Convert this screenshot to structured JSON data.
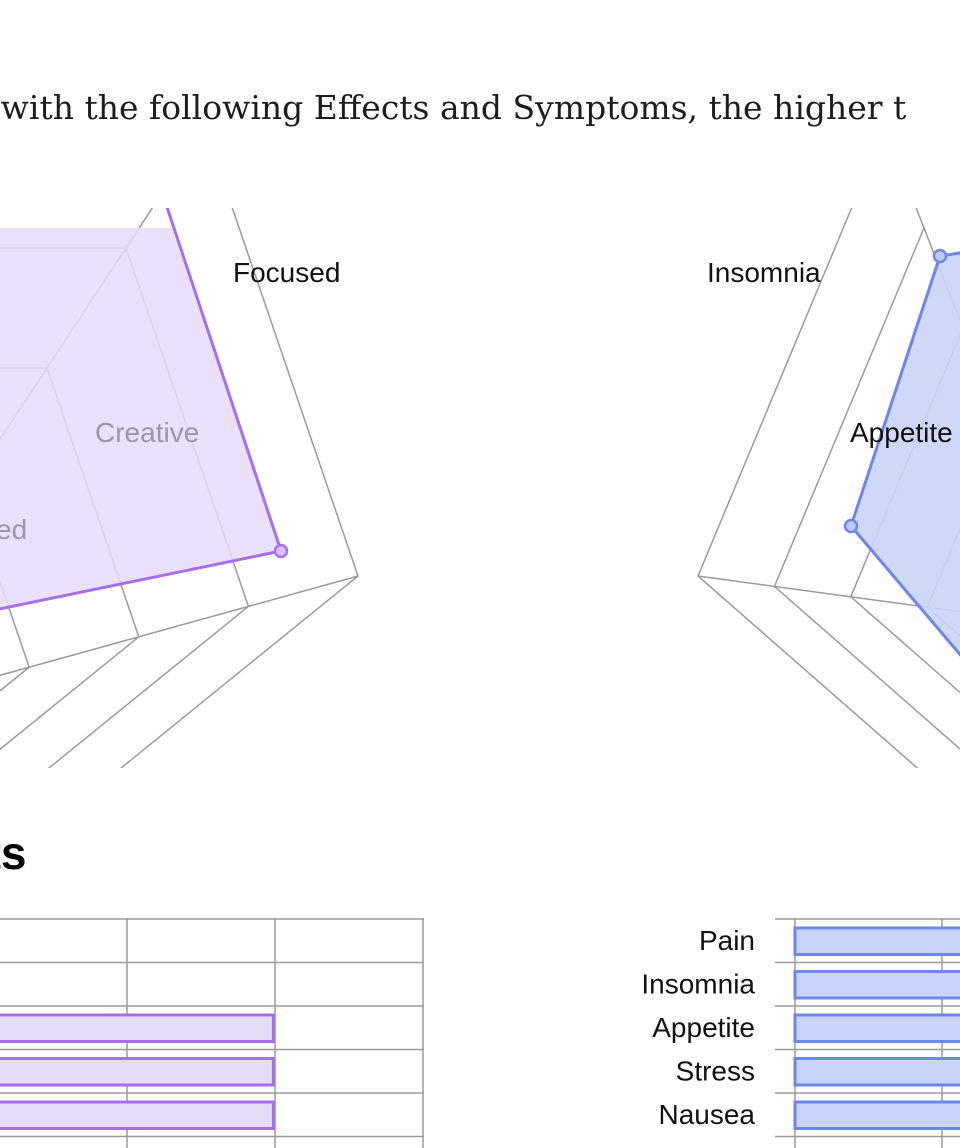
{
  "intro_text": "ts with the following Effects and Symptoms, the higher t",
  "section_heading": "cts",
  "colors": {
    "effects_stroke": "#a66ee8",
    "effects_fill": "#e8dcfb",
    "symptoms_stroke": "#6b87ea",
    "symptoms_fill": "#cad4f8",
    "grid": "#9a9a9a"
  },
  "chart_data": [
    {
      "type": "radar",
      "name": "effects-radar",
      "axes": [
        "Focused",
        "Creative",
        "ed"
      ],
      "visible_axis_label": "Focused",
      "faded_labels": [
        "Creative",
        "ed"
      ],
      "series": [
        {
          "values": [
            4,
            5,
            4
          ]
        }
      ]
    },
    {
      "type": "radar",
      "name": "symptoms-radar",
      "axes": [
        "Insomnia",
        "Appetite"
      ],
      "visible_axis_label": "Insomnia",
      "faded_labels": [
        "Appetite"
      ],
      "series": [
        {
          "values": [
            4,
            3
          ]
        }
      ]
    },
    {
      "type": "bar",
      "orientation": "horizontal",
      "name": "effects-bars",
      "categories": [
        "",
        "",
        "",
        "",
        ""
      ],
      "values": [
        0,
        0,
        4,
        4,
        4
      ],
      "xlim": [
        0,
        5
      ]
    },
    {
      "type": "bar",
      "orientation": "horizontal",
      "name": "symptoms-bars",
      "categories": [
        "Pain",
        "Insomnia",
        "Appetite",
        "Stress",
        "Nausea"
      ],
      "values": [
        4,
        4,
        4,
        4,
        4
      ],
      "xlim": [
        0,
        5
      ]
    }
  ]
}
